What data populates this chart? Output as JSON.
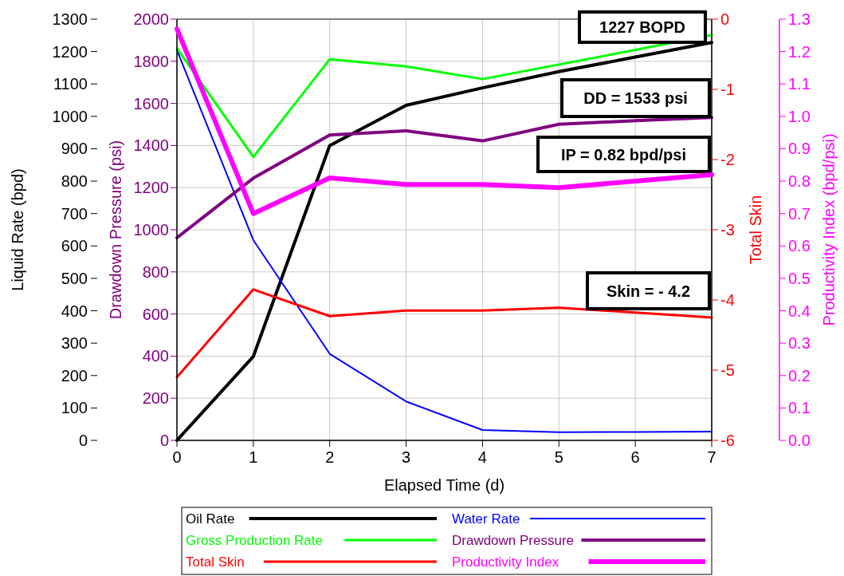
{
  "chart_data": [
    {
      "type": "line",
      "xlabel": "Elapsed Time (d)",
      "ylabel": "Liquid Rate (bpd)",
      "y2label": "Drawdown Pressure (psi)",
      "y3label": "Total Skin",
      "x": [
        0,
        1,
        2,
        3,
        4,
        5,
        6,
        7
      ],
      "xlim": [
        0,
        7
      ],
      "xticks": [
        0,
        1,
        2,
        3,
        4,
        5,
        6,
        7
      ],
      "ylim": [
        0,
        1300
      ],
      "yticks": [
        0,
        100,
        200,
        300,
        400,
        500,
        600,
        700,
        800,
        900,
        1000,
        1100,
        1200,
        1300
      ],
      "y2lim": [
        0,
        2000
      ],
      "y2ticks": [
        0,
        200,
        400,
        600,
        800,
        1000,
        1200,
        1400,
        1600,
        1800,
        2000
      ],
      "y3lim": [
        -6,
        0
      ],
      "y3ticks": [
        -6,
        -5,
        -4,
        -3,
        -2,
        -1,
        0
      ],
      "grid": true,
      "legend": "bottom",
      "line_style": "solid",
      "marker": "none",
      "series": [
        {
          "name": "Oil Rate",
          "color": "#000000",
          "axis": "y",
          "values": [
            0,
            259,
            910,
            1034,
            1088,
            1138,
            1183,
            1228
          ]
        },
        {
          "name": "Water Rate",
          "color": "#0000ff",
          "axis": "y",
          "values": [
            1204,
            618,
            267,
            120,
            32,
            25,
            26,
            27
          ]
        },
        {
          "name": "Gross Production Rate",
          "color": "#00ff00",
          "axis": "y",
          "values": [
            1210,
            875,
            1176,
            1154,
            1115,
            1160,
            1205,
            1251
          ]
        },
        {
          "name": "Drawdown Pressure",
          "color": "#800080",
          "axis": "y2",
          "values": [
            962,
            1245,
            1450,
            1470,
            1422,
            1501,
            1518,
            1533
          ]
        },
        {
          "name": "Total Skin",
          "color": "#ff0000",
          "axis": "y3",
          "values": [
            -5.1,
            -3.85,
            -4.23,
            -4.15,
            -4.15,
            -4.11,
            -4.18,
            -4.25
          ]
        }
      ],
      "annotations": [
        "1227 BOPD",
        "DD = 1533 psi",
        "IP = 0.82 bpd/psi",
        "Skin = - 4.2"
      ]
    },
    {
      "type": "line",
      "ylabel": "Productivity Index (bpd/psi)",
      "tick_labels": "y",
      "x": [
        0,
        1,
        2,
        3,
        4,
        5,
        6,
        7
      ],
      "xlim": [
        0,
        7
      ],
      "ylim": [
        0,
        1.3
      ],
      "yticks": [
        {
          "value": 0,
          "label": "0.0"
        },
        0.1,
        0.2,
        0.3,
        0.4,
        0.5,
        0.6,
        0.7,
        0.8,
        0.9,
        {
          "value": 1,
          "label": "1.0"
        },
        1.1,
        1.2,
        1.3
      ],
      "legend": "bottom",
      "line_style": "solid",
      "marker": "none",
      "series": [
        {
          "name": "Productivity Index",
          "color": "#ff00ff",
          "values": [
            1.27,
            0.7,
            0.81,
            0.79,
            0.79,
            0.78,
            0.8,
            0.82
          ]
        }
      ]
    }
  ]
}
